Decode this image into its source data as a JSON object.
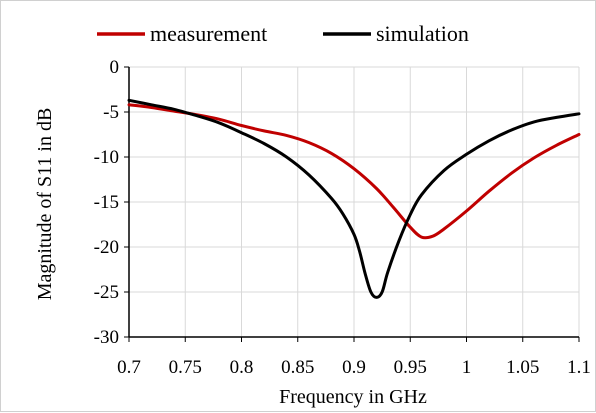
{
  "chart_data": {
    "type": "line",
    "title": "",
    "xlabel": "Frequency in GHz",
    "ylabel": "Magnitude of  S11 in dB",
    "xlim": [
      0.7,
      1.1
    ],
    "ylim": [
      -30,
      0
    ],
    "x_ticks": [
      0.7,
      0.75,
      0.8,
      0.85,
      0.9,
      0.95,
      1,
      1.05,
      1.1
    ],
    "x_tick_labels": [
      "0.7",
      "0.75",
      "0.8",
      "0.85",
      "0.9",
      "0.95",
      "1",
      "1.05",
      "1.1"
    ],
    "y_ticks": [
      0,
      -5,
      -10,
      -15,
      -20,
      -25,
      -30
    ],
    "y_tick_labels": [
      "0",
      "-5",
      "-10",
      "-15",
      "-20",
      "-25",
      "-30"
    ],
    "grid": true,
    "legend_position": "top",
    "series": [
      {
        "name": "measurement",
        "color": "#c00000",
        "points": [
          [
            0.7,
            -4.2
          ],
          [
            0.72,
            -4.5
          ],
          [
            0.74,
            -4.9
          ],
          [
            0.76,
            -5.3
          ],
          [
            0.78,
            -5.8
          ],
          [
            0.8,
            -6.5
          ],
          [
            0.82,
            -7.1
          ],
          [
            0.84,
            -7.6
          ],
          [
            0.86,
            -8.4
          ],
          [
            0.88,
            -9.6
          ],
          [
            0.9,
            -11.3
          ],
          [
            0.92,
            -13.5
          ],
          [
            0.935,
            -15.6
          ],
          [
            0.95,
            -17.8
          ],
          [
            0.96,
            -18.9
          ],
          [
            0.97,
            -18.8
          ],
          [
            0.98,
            -18.0
          ],
          [
            1.0,
            -16.0
          ],
          [
            1.02,
            -13.8
          ],
          [
            1.04,
            -11.8
          ],
          [
            1.06,
            -10.1
          ],
          [
            1.08,
            -8.7
          ],
          [
            1.1,
            -7.5
          ]
        ]
      },
      {
        "name": "simulation",
        "color": "#000000",
        "points": [
          [
            0.7,
            -3.7
          ],
          [
            0.72,
            -4.2
          ],
          [
            0.74,
            -4.7
          ],
          [
            0.76,
            -5.4
          ],
          [
            0.78,
            -6.2
          ],
          [
            0.8,
            -7.3
          ],
          [
            0.82,
            -8.5
          ],
          [
            0.84,
            -10.0
          ],
          [
            0.86,
            -12.0
          ],
          [
            0.88,
            -14.6
          ],
          [
            0.89,
            -16.3
          ],
          [
            0.9,
            -18.6
          ],
          [
            0.905,
            -20.5
          ],
          [
            0.91,
            -23.0
          ],
          [
            0.915,
            -25.0
          ],
          [
            0.92,
            -25.6
          ],
          [
            0.925,
            -25.0
          ],
          [
            0.93,
            -22.8
          ],
          [
            0.94,
            -19.3
          ],
          [
            0.95,
            -16.4
          ],
          [
            0.96,
            -14.2
          ],
          [
            0.98,
            -11.5
          ],
          [
            1.0,
            -9.7
          ],
          [
            1.02,
            -8.2
          ],
          [
            1.04,
            -7.0
          ],
          [
            1.06,
            -6.1
          ],
          [
            1.08,
            -5.6
          ],
          [
            1.1,
            -5.2
          ]
        ]
      }
    ]
  }
}
